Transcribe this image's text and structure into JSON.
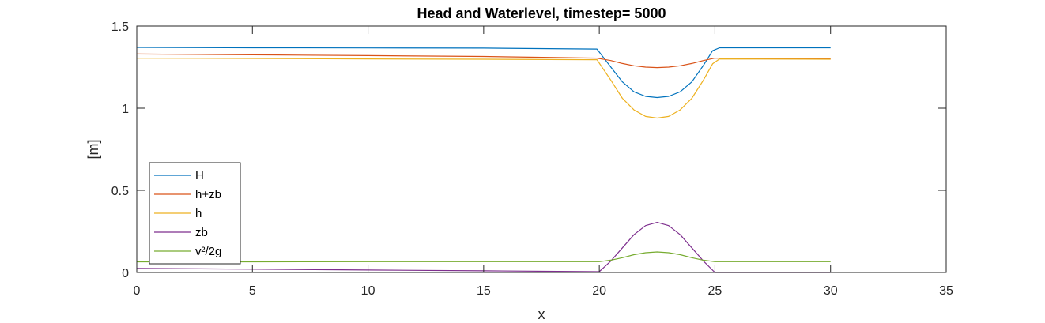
{
  "chart_data": {
    "type": "line",
    "title": "Head and Waterlevel, timestep= 5000",
    "xlabel": "x",
    "ylabel": "[m]",
    "xlim": [
      0,
      35
    ],
    "ylim": [
      0,
      1.5
    ],
    "xticks": [
      0,
      5,
      10,
      15,
      20,
      25,
      30,
      35
    ],
    "yticks": [
      0,
      0.5,
      1,
      1.5
    ],
    "xtick_labels": [
      "0",
      "5",
      "10",
      "15",
      "20",
      "25",
      "30",
      "35"
    ],
    "ytick_labels": [
      "0",
      "0.5",
      "1",
      "1.5"
    ],
    "grid": false,
    "legend_position": "bottom-left",
    "series": [
      {
        "name": "H",
        "color": "#0072BD",
        "x": [
          0,
          5,
          10,
          15,
          19.9,
          20.5,
          21,
          21.5,
          22,
          22.5,
          23,
          23.5,
          24,
          24.5,
          24.9,
          25.2,
          30
        ],
        "y": [
          1.37,
          1.368,
          1.367,
          1.366,
          1.36,
          1.25,
          1.16,
          1.1,
          1.072,
          1.065,
          1.072,
          1.1,
          1.16,
          1.26,
          1.35,
          1.368,
          1.368
        ]
      },
      {
        "name": "h+zb",
        "color": "#D95319",
        "x": [
          0,
          5,
          10,
          15,
          19.9,
          20.5,
          21,
          21.5,
          22,
          22.5,
          23,
          23.5,
          24,
          24.5,
          25,
          30
        ],
        "y": [
          1.33,
          1.325,
          1.32,
          1.315,
          1.305,
          1.29,
          1.272,
          1.258,
          1.25,
          1.247,
          1.25,
          1.258,
          1.272,
          1.29,
          1.305,
          1.3
        ]
      },
      {
        "name": "h",
        "color": "#EDB120",
        "x": [
          0,
          5,
          10,
          15,
          19.9,
          20.5,
          21,
          21.5,
          22,
          22.5,
          23,
          23.5,
          24,
          24.5,
          24.9,
          25.2,
          30
        ],
        "y": [
          1.305,
          1.303,
          1.3,
          1.298,
          1.295,
          1.17,
          1.06,
          0.99,
          0.95,
          0.94,
          0.95,
          0.99,
          1.06,
          1.17,
          1.27,
          1.3,
          1.298
        ]
      },
      {
        "name": "zb",
        "color": "#7E2F8E",
        "x": [
          0,
          5,
          10,
          15,
          20,
          20.5,
          21,
          21.5,
          22,
          22.5,
          23,
          23.5,
          24,
          24.5,
          25,
          30
        ],
        "y": [
          0.025,
          0.02,
          0.015,
          0.01,
          0.005,
          0.07,
          0.15,
          0.23,
          0.285,
          0.305,
          0.285,
          0.23,
          0.15,
          0.07,
          0.0,
          0.0
        ]
      },
      {
        "name": "v²/2g",
        "color": "#77AC30",
        "x": [
          0,
          5,
          10,
          15,
          20,
          20.5,
          21,
          21.5,
          22,
          22.5,
          23,
          23.5,
          24,
          24.5,
          25,
          30
        ],
        "y": [
          0.065,
          0.065,
          0.066,
          0.066,
          0.066,
          0.075,
          0.09,
          0.108,
          0.12,
          0.125,
          0.12,
          0.108,
          0.09,
          0.075,
          0.066,
          0.066
        ]
      }
    ]
  }
}
